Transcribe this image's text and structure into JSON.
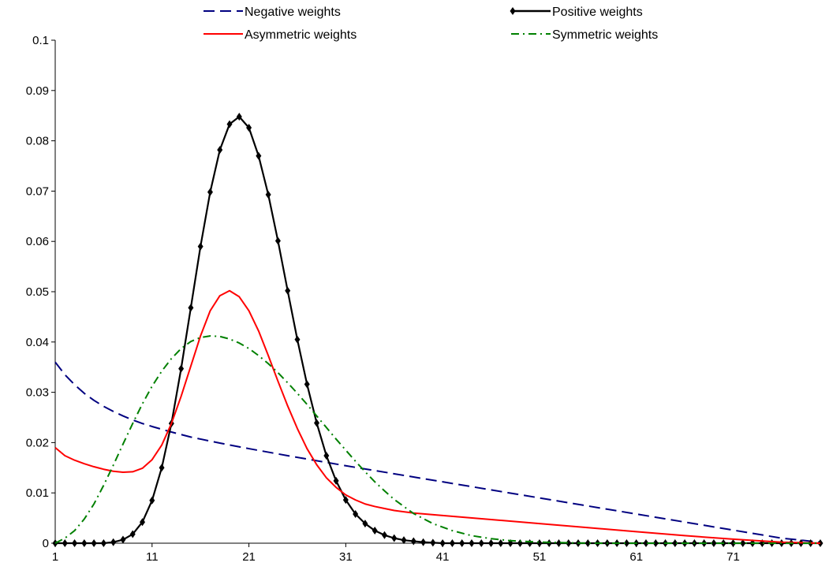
{
  "chart_data": {
    "type": "line",
    "x_ticks": [
      1,
      11,
      21,
      31,
      41,
      51,
      61,
      71
    ],
    "y_ticks": [
      0,
      0.01,
      0.02,
      0.03,
      0.04,
      0.05,
      0.06,
      0.07,
      0.08,
      0.09,
      0.1
    ],
    "y_tick_labels": [
      "0",
      "0.01",
      "0.02",
      "0.03",
      "0.04",
      "0.05",
      "0.06",
      "0.07",
      "0.08",
      "0.09",
      "0.1"
    ],
    "xlim": [
      1,
      80
    ],
    "ylim": [
      0,
      0.1
    ],
    "grid": false,
    "legend_position": "top",
    "series": [
      {
        "name": "Negative weights",
        "color": "#000080",
        "style": "dashed",
        "marker": "none",
        "points": [
          [
            1,
            0.036
          ],
          [
            2,
            0.0335
          ],
          [
            3,
            0.0315
          ],
          [
            4,
            0.0298
          ],
          [
            5,
            0.0284
          ],
          [
            6,
            0.0272
          ],
          [
            7,
            0.0262
          ],
          [
            8,
            0.0253
          ],
          [
            9,
            0.0245
          ],
          [
            10,
            0.0238
          ],
          [
            11,
            0.0232
          ],
          [
            13,
            0.0221
          ],
          [
            15,
            0.0211
          ],
          [
            18,
            0.0199
          ],
          [
            21,
            0.0188
          ],
          [
            25,
            0.0174
          ],
          [
            31,
            0.0154
          ],
          [
            36,
            0.0138
          ],
          [
            41,
            0.0122
          ],
          [
            46,
            0.0106
          ],
          [
            51,
            0.009
          ],
          [
            56,
            0.0074
          ],
          [
            61,
            0.0058
          ],
          [
            66,
            0.0042
          ],
          [
            71,
            0.0026
          ],
          [
            76,
            0.001
          ],
          [
            80,
            0.0002
          ]
        ]
      },
      {
        "name": "Positive weights",
        "color": "#000000",
        "style": "solid",
        "marker": "diamond",
        "points": [
          [
            1,
            0
          ],
          [
            2,
            0
          ],
          [
            3,
            0
          ],
          [
            4,
            0
          ],
          [
            5,
            0
          ],
          [
            6,
            0
          ],
          [
            7,
            0.0002
          ],
          [
            8,
            0.0007
          ],
          [
            9,
            0.0018
          ],
          [
            10,
            0.0042
          ],
          [
            11,
            0.0085
          ],
          [
            12,
            0.015
          ],
          [
            13,
            0.0238
          ],
          [
            14,
            0.0347
          ],
          [
            15,
            0.0468
          ],
          [
            16,
            0.059
          ],
          [
            17,
            0.0698
          ],
          [
            18,
            0.0782
          ],
          [
            19,
            0.0833
          ],
          [
            20,
            0.0848
          ],
          [
            21,
            0.0826
          ],
          [
            22,
            0.077
          ],
          [
            23,
            0.0693
          ],
          [
            24,
            0.0601
          ],
          [
            25,
            0.0502
          ],
          [
            26,
            0.0405
          ],
          [
            27,
            0.0316
          ],
          [
            28,
            0.0239
          ],
          [
            29,
            0.0174
          ],
          [
            30,
            0.0124
          ],
          [
            31,
            0.0086
          ],
          [
            32,
            0.0058
          ],
          [
            33,
            0.0039
          ],
          [
            34,
            0.0025
          ],
          [
            35,
            0.0016
          ],
          [
            36,
            0.001
          ],
          [
            37,
            0.0006
          ],
          [
            38,
            0.0004
          ],
          [
            39,
            0.0002
          ],
          [
            40,
            0.0001
          ],
          [
            41,
            0
          ],
          [
            42,
            0
          ],
          [
            43,
            0
          ],
          [
            44,
            0
          ],
          [
            45,
            0
          ],
          [
            46,
            0
          ],
          [
            47,
            0
          ],
          [
            48,
            0
          ],
          [
            49,
            0
          ],
          [
            50,
            0
          ],
          [
            51,
            0
          ],
          [
            52,
            0
          ],
          [
            53,
            0
          ],
          [
            54,
            0
          ],
          [
            55,
            0
          ],
          [
            56,
            0
          ],
          [
            57,
            0
          ],
          [
            58,
            0
          ],
          [
            59,
            0
          ],
          [
            60,
            0
          ],
          [
            61,
            0
          ],
          [
            62,
            0
          ],
          [
            63,
            0
          ],
          [
            64,
            0
          ],
          [
            65,
            0
          ],
          [
            66,
            0
          ],
          [
            67,
            0
          ],
          [
            68,
            0
          ],
          [
            69,
            0
          ],
          [
            70,
            0
          ],
          [
            71,
            0
          ],
          [
            72,
            0
          ],
          [
            73,
            0
          ],
          [
            74,
            0
          ],
          [
            75,
            0
          ],
          [
            76,
            0
          ],
          [
            77,
            0
          ],
          [
            78,
            0
          ],
          [
            79,
            0
          ],
          [
            80,
            0
          ]
        ]
      },
      {
        "name": "Asymmetric weights",
        "color": "#ff0000",
        "style": "solid",
        "marker": "none",
        "points": [
          [
            1,
            0.019
          ],
          [
            2,
            0.0174
          ],
          [
            3,
            0.0165
          ],
          [
            4,
            0.0158
          ],
          [
            5,
            0.0152
          ],
          [
            6,
            0.0147
          ],
          [
            7,
            0.0143
          ],
          [
            8,
            0.0141
          ],
          [
            9,
            0.0142
          ],
          [
            10,
            0.0149
          ],
          [
            11,
            0.0166
          ],
          [
            12,
            0.0195
          ],
          [
            13,
            0.0238
          ],
          [
            14,
            0.0292
          ],
          [
            15,
            0.0352
          ],
          [
            16,
            0.0412
          ],
          [
            17,
            0.0462
          ],
          [
            18,
            0.0492
          ],
          [
            19,
            0.0502
          ],
          [
            20,
            0.049
          ],
          [
            21,
            0.0462
          ],
          [
            22,
            0.0422
          ],
          [
            23,
            0.0373
          ],
          [
            24,
            0.0322
          ],
          [
            25,
            0.0273
          ],
          [
            26,
            0.0228
          ],
          [
            27,
            0.0188
          ],
          [
            28,
            0.0156
          ],
          [
            29,
            0.013
          ],
          [
            30,
            0.0111
          ],
          [
            31,
            0.0096
          ],
          [
            32,
            0.0086
          ],
          [
            33,
            0.0078
          ],
          [
            34,
            0.0073
          ],
          [
            35,
            0.0069
          ],
          [
            36,
            0.0065
          ],
          [
            38,
            0.006
          ],
          [
            41,
            0.0055
          ],
          [
            46,
            0.0047
          ],
          [
            51,
            0.0039
          ],
          [
            56,
            0.0031
          ],
          [
            61,
            0.0023
          ],
          [
            66,
            0.0015
          ],
          [
            71,
            0.0008
          ],
          [
            76,
            0.0002
          ],
          [
            80,
            0
          ]
        ]
      },
      {
        "name": "Symmetric weights",
        "color": "#008000",
        "style": "dashdot",
        "marker": "none",
        "points": [
          [
            1,
            0
          ],
          [
            2,
            0.001
          ],
          [
            3,
            0.0025
          ],
          [
            4,
            0.0048
          ],
          [
            5,
            0.0078
          ],
          [
            6,
            0.0115
          ],
          [
            7,
            0.0155
          ],
          [
            8,
            0.0197
          ],
          [
            9,
            0.0238
          ],
          [
            10,
            0.0277
          ],
          [
            11,
            0.0312
          ],
          [
            12,
            0.0342
          ],
          [
            13,
            0.0367
          ],
          [
            14,
            0.0387
          ],
          [
            15,
            0.0401
          ],
          [
            16,
            0.0409
          ],
          [
            17,
            0.0412
          ],
          [
            18,
            0.0411
          ],
          [
            19,
            0.0406
          ],
          [
            20,
            0.0398
          ],
          [
            21,
            0.0387
          ],
          [
            22,
            0.0373
          ],
          [
            23,
            0.0357
          ],
          [
            24,
            0.0339
          ],
          [
            25,
            0.0319
          ],
          [
            26,
            0.0298
          ],
          [
            27,
            0.0276
          ],
          [
            28,
            0.0253
          ],
          [
            29,
            0.023
          ],
          [
            30,
            0.0207
          ],
          [
            31,
            0.0185
          ],
          [
            32,
            0.0163
          ],
          [
            33,
            0.0142
          ],
          [
            34,
            0.0122
          ],
          [
            35,
            0.0104
          ],
          [
            36,
            0.0087
          ],
          [
            38,
            0.0059
          ],
          [
            40,
            0.0039
          ],
          [
            42,
            0.0025
          ],
          [
            44,
            0.0015
          ],
          [
            46,
            0.0009
          ],
          [
            48,
            0.0005
          ],
          [
            51,
            0.0002
          ],
          [
            56,
            0
          ],
          [
            80,
            0
          ]
        ]
      }
    ]
  }
}
